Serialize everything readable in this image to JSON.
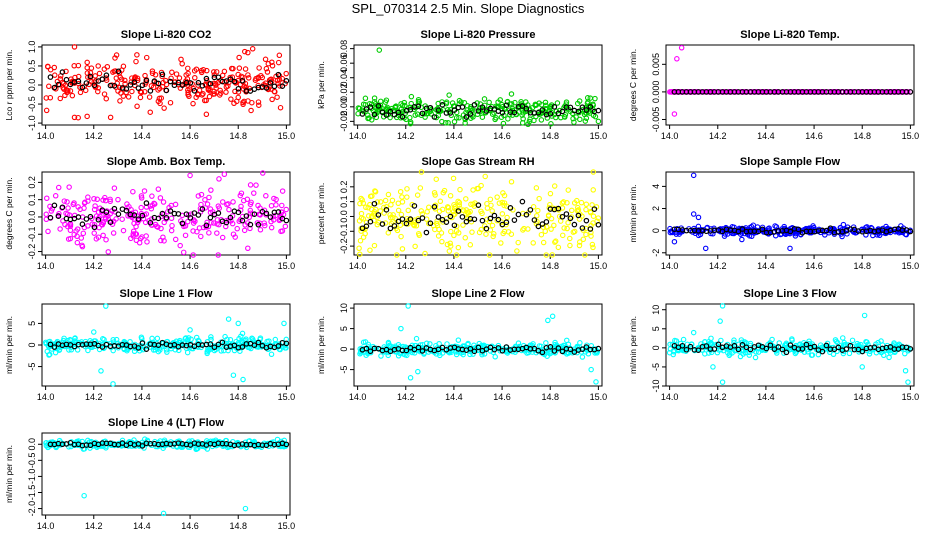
{
  "figure_title": "SPL_070314  2.5 Min. Slope Diagnostics",
  "chart_data": [
    {
      "type": "scatter",
      "title": "Slope Li-820 CO2",
      "ylabel": "Lco r ppm per min.",
      "xlim": [
        14.0,
        15.0
      ],
      "ylim": [
        -1.05,
        1.05
      ],
      "xticks": [
        "14.0",
        "14.2",
        "14.4",
        "14.6",
        "14.8",
        "15.0"
      ],
      "yticks": [
        -1.0,
        -0.5,
        0.0,
        0.5,
        1.0
      ],
      "ytick_labels": [
        "-1.0",
        "-0.5",
        "0.0",
        "0.5",
        "1.0"
      ],
      "color": "#ff0000",
      "center": 0.05,
      "spread": 0.3,
      "outliers": [
        [
          14.12,
          1.0
        ],
        [
          14.12,
          -0.85
        ],
        [
          14.27,
          -0.85
        ],
        [
          14.86,
          0.95
        ],
        [
          14.84,
          0.85
        ],
        [
          14.42,
          0.72
        ]
      ],
      "black_series": "open circles, same scale"
    },
    {
      "type": "scatter",
      "title": "Slope Li-820 Pressure",
      "ylabel": "kPa per min.",
      "xlim": [
        14.0,
        15.0
      ],
      "ylim": [
        -0.025,
        0.085
      ],
      "xticks": [
        "14.0",
        "14.2",
        "14.4",
        "14.6",
        "14.8",
        "15.0"
      ],
      "yticks": [
        -0.02,
        0.0,
        0.02,
        0.04,
        0.06,
        0.08
      ],
      "ytick_labels": [
        "-0.02",
        "0.00",
        "0.02",
        "0.04",
        "0.06",
        "0.08"
      ],
      "color": "#00cc00",
      "center": -0.005,
      "spread": 0.008,
      "outliers": [
        [
          14.09,
          0.078
        ],
        [
          15.0,
          -0.02
        ]
      ],
      "black_series": "open circles, same scale"
    },
    {
      "type": "scatter",
      "title": "Slope Li-820 Temp.",
      "ylabel": "degrees C per min.",
      "xlim": [
        14.0,
        15.0
      ],
      "ylim": [
        -0.006,
        0.0085
      ],
      "xticks": [
        "14.0",
        "14.2",
        "14.4",
        "14.6",
        "14.8",
        "15.0"
      ],
      "yticks": [
        -0.005,
        0.0,
        0.005
      ],
      "ytick_labels": [
        "-0.005",
        "0.000",
        "0.005"
      ],
      "color": "#ff00ff",
      "center": 0.0,
      "spread": 0.0,
      "outliers": [
        [
          14.02,
          -0.004
        ],
        [
          14.05,
          0.008
        ],
        [
          14.03,
          0.006
        ]
      ],
      "black_series": "open circles, same scale"
    },
    {
      "type": "scatter",
      "title": "Slope Amb. Box Temp.",
      "ylabel": "degrees C per min.",
      "xlim": [
        14.0,
        15.0
      ],
      "ylim": [
        -0.22,
        0.26
      ],
      "xticks": [
        "14.0",
        "14.2",
        "14.4",
        "14.6",
        "14.8",
        "15.0"
      ],
      "yticks": [
        -0.2,
        -0.1,
        0.0,
        0.1,
        0.2
      ],
      "ytick_labels": [
        "-0.2",
        "-0.1",
        "0.0",
        "0.1",
        "0.2"
      ],
      "color": "#ff00ff",
      "center": 0.0,
      "spread": 0.08,
      "outliers": [
        [
          14.6,
          0.24
        ],
        [
          14.72,
          0.22
        ]
      ],
      "black_series": "open circles, same scale"
    },
    {
      "type": "scatter",
      "title": "Slope Gas Stream RH",
      "ylabel": "percent per min.",
      "xlim": [
        14.0,
        15.0
      ],
      "ylim": [
        -0.26,
        0.3
      ],
      "xticks": [
        "14.0",
        "14.2",
        "14.4",
        "14.6",
        "14.8",
        "15.0"
      ],
      "yticks": [
        -0.2,
        -0.1,
        0.0,
        0.1,
        0.2
      ],
      "ytick_labels": [
        "-0.2",
        "-0.1",
        "0.0",
        "0.1",
        "0.2"
      ],
      "color": "#ffff00",
      "center": 0.0,
      "spread": 0.11,
      "outliers": [
        [
          14.53,
          0.27
        ],
        [
          14.28,
          -0.25
        ]
      ],
      "black_series": "open circles, same scale"
    },
    {
      "type": "scatter",
      "title": "Slope Sample Flow",
      "ylabel": "ml/min per min.",
      "xlim": [
        14.0,
        15.0
      ],
      "ylim": [
        -2.2,
        5.3
      ],
      "xticks": [
        "14.0",
        "14.2",
        "14.4",
        "14.6",
        "14.8",
        "15.0"
      ],
      "yticks": [
        -2,
        0,
        2,
        4
      ],
      "ytick_labels": [
        "-2",
        "0",
        "2",
        "4"
      ],
      "color": "#0000ff",
      "center": 0.0,
      "spread": 0.2,
      "outliers": [
        [
          14.1,
          5.0
        ],
        [
          14.1,
          1.5
        ],
        [
          14.12,
          1.2
        ],
        [
          14.15,
          -1.6
        ],
        [
          14.5,
          -1.6
        ],
        [
          14.02,
          -1.0
        ],
        [
          14.3,
          -0.8
        ]
      ],
      "black_series": "open circles, same scale"
    },
    {
      "type": "scatter",
      "title": "Slope Line 1 Flow",
      "ylabel": "ml/min per min.",
      "xlim": [
        14.0,
        15.0
      ],
      "ylim": [
        -9.5,
        9.5
      ],
      "xticks": [
        "14.0",
        "14.2",
        "14.4",
        "14.6",
        "14.8",
        "15.0"
      ],
      "yticks": [
        -5,
        0,
        5
      ],
      "ytick_labels": [
        "-5",
        "0",
        "5"
      ],
      "color": "#00ffff",
      "center": 0.0,
      "spread": 0.8,
      "outliers": [
        [
          14.25,
          9.0
        ],
        [
          14.28,
          -9.0
        ],
        [
          14.23,
          -6.0
        ],
        [
          14.76,
          6.0
        ],
        [
          14.8,
          5.0
        ],
        [
          14.78,
          -7.0
        ],
        [
          14.82,
          -8.0
        ],
        [
          14.99,
          5.0
        ],
        [
          14.2,
          3.0
        ],
        [
          14.6,
          3.5
        ]
      ],
      "black_series": "open circles, same scale"
    },
    {
      "type": "scatter",
      "title": "Slope Line 2 Flow",
      "ylabel": "ml/min per min.",
      "xlim": [
        14.0,
        15.0
      ],
      "ylim": [
        -9.0,
        11.0
      ],
      "xticks": [
        "14.0",
        "14.2",
        "14.4",
        "14.6",
        "14.8",
        "15.0"
      ],
      "yticks": [
        -5,
        0,
        5,
        10
      ],
      "ytick_labels": [
        "-5",
        "0",
        "5",
        "10"
      ],
      "color": "#00ffff",
      "center": 0.0,
      "spread": 0.8,
      "outliers": [
        [
          14.21,
          10.5
        ],
        [
          14.22,
          -7.0
        ],
        [
          14.25,
          -5.5
        ],
        [
          14.81,
          8.0
        ],
        [
          14.79,
          7.0
        ],
        [
          14.99,
          -8.0
        ],
        [
          14.97,
          -5.0
        ],
        [
          14.18,
          5.0
        ]
      ],
      "black_series": "open circles, same scale"
    },
    {
      "type": "scatter",
      "title": "Slope Line 3 Flow",
      "ylabel": "ml/min per min.",
      "xlim": [
        14.0,
        15.0
      ],
      "ylim": [
        -10.0,
        11.5
      ],
      "xticks": [
        "14.0",
        "14.2",
        "14.4",
        "14.6",
        "14.8",
        "15.0"
      ],
      "yticks": [
        -10,
        -5,
        0,
        5,
        10
      ],
      "ytick_labels": [
        "-10",
        "-5",
        "0",
        "5",
        "10"
      ],
      "color": "#00ffff",
      "center": 0.0,
      "spread": 1.0,
      "outliers": [
        [
          14.22,
          11.0
        ],
        [
          14.22,
          -9.0
        ],
        [
          14.18,
          -5.0
        ],
        [
          14.21,
          7.0
        ],
        [
          14.81,
          8.5
        ],
        [
          14.8,
          -5.0
        ],
        [
          14.99,
          -9.0
        ],
        [
          14.98,
          -6.0
        ],
        [
          14.1,
          4.0
        ]
      ],
      "black_series": "open circles, same scale"
    },
    {
      "type": "scatter",
      "title": "Slope Line 4 (LT) Flow",
      "ylabel": "ml/min per min.",
      "xlim": [
        14.0,
        15.0
      ],
      "ylim": [
        -2.2,
        0.35
      ],
      "xticks": [
        "14.0",
        "14.2",
        "14.4",
        "14.6",
        "14.8",
        "15.0"
      ],
      "yticks": [
        -2.0,
        -1.5,
        -1.0,
        -0.5,
        0.0
      ],
      "ytick_labels": [
        "-2.0",
        "-1.5",
        "-1.0",
        "-0.5",
        "0.0"
      ],
      "color": "#00ffff",
      "center": 0.0,
      "spread": 0.06,
      "outliers": [
        [
          14.16,
          -1.6
        ],
        [
          14.49,
          -2.15
        ],
        [
          14.83,
          -2.0
        ]
      ],
      "black_series": "open circles, same scale"
    }
  ]
}
